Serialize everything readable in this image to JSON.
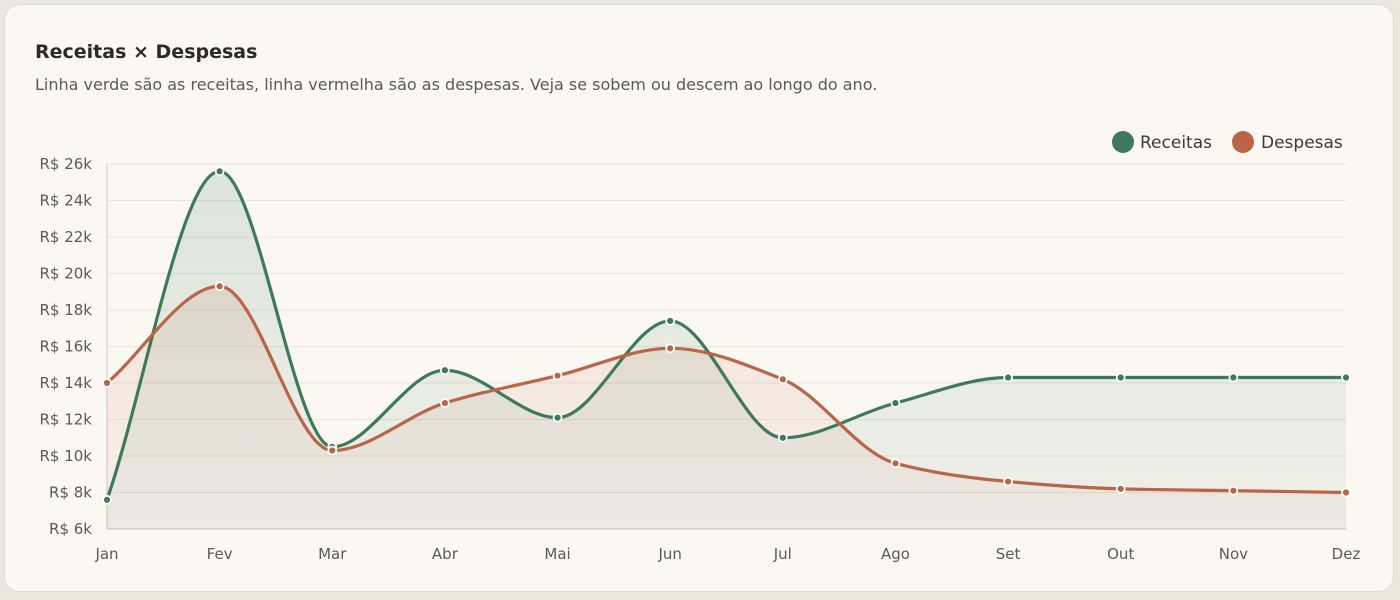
{
  "header": {
    "title": "Receitas × Despesas",
    "subtitle": "Linha verde são as receitas, linha vermelha são as despesas. Veja se sobem ou descem ao longo do ano."
  },
  "colors": {
    "receitas": "#3e7a5a",
    "despesas": "#b8654a"
  },
  "chart_data": {
    "type": "line",
    "title": "Receitas × Despesas",
    "categories": [
      "Jan",
      "Fev",
      "Mar",
      "Abr",
      "Mai",
      "Jun",
      "Jul",
      "Ago",
      "Set",
      "Out",
      "Nov",
      "Dez"
    ],
    "series": [
      {
        "name": "Receitas",
        "values": [
          7600,
          25600,
          10500,
          14700,
          12100,
          17400,
          11000,
          12900,
          14300,
          14300,
          14300,
          14300
        ]
      },
      {
        "name": "Despesas",
        "values": [
          14000,
          19300,
          10300,
          12900,
          14400,
          15900,
          14200,
          9600,
          8600,
          8200,
          8100,
          8000
        ]
      }
    ],
    "yticks": [
      "R$ 6k",
      "R$ 8k",
      "R$ 10k",
      "R$ 12k",
      "R$ 14k",
      "R$ 16k",
      "R$ 18k",
      "R$ 20k",
      "R$ 22k",
      "R$ 24k",
      "R$ 26k"
    ],
    "ylim": [
      6000,
      26000
    ],
    "grid": true,
    "legend": "top-right"
  }
}
